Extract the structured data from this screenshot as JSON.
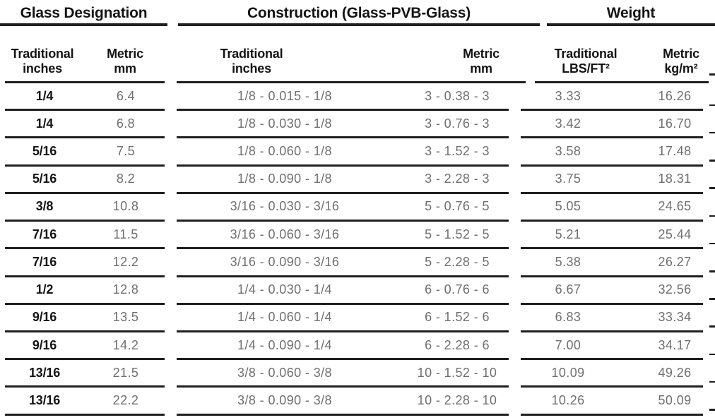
{
  "colors": {
    "ink": "#141414",
    "muted": "#6f6f6f",
    "rule": "#1f1f1f"
  },
  "header": {
    "groups": [
      {
        "title": "Glass Designation"
      },
      {
        "title": "Construction (Glass-PVB-Glass)"
      },
      {
        "title": "Weight"
      }
    ],
    "subcolumns": [
      {
        "line1": "Traditional",
        "line2": "inches"
      },
      {
        "line1": "Metric",
        "line2": "mm"
      },
      {
        "line1": "Traditional",
        "line2": "inches"
      },
      {
        "line1": "Metric",
        "line2": "mm"
      },
      {
        "line1": "Traditional",
        "line2": "LBS/FT²"
      },
      {
        "line1": "Metric",
        "line2": "kg/m²"
      }
    ]
  },
  "rows": [
    {
      "glass_in": "1/4",
      "glass_mm": "6.4",
      "con_in": "1/8 - 0.015 - 1/8",
      "con_mm": "3 - 0.38 - 3",
      "lbs": "3.33",
      "kg": "16.26"
    },
    {
      "glass_in": "1/4",
      "glass_mm": "6.8",
      "con_in": "1/8 - 0.030 - 1/8",
      "con_mm": "3 - 0.76 - 3",
      "lbs": "3.42",
      "kg": "16.70"
    },
    {
      "glass_in": "5/16",
      "glass_mm": "7.5",
      "con_in": "1/8 - 0.060 - 1/8",
      "con_mm": "3 - 1.52 - 3",
      "lbs": "3.58",
      "kg": "17.48"
    },
    {
      "glass_in": "5/16",
      "glass_mm": "8.2",
      "con_in": "1/8 - 0.090 - 1/8",
      "con_mm": "3 - 2.28 - 3",
      "lbs": "3.75",
      "kg": "18.31"
    },
    {
      "glass_in": "3/8",
      "glass_mm": "10.8",
      "con_in": "3/16 - 0.030 - 3/16",
      "con_mm": "5 - 0.76 - 5",
      "lbs": "5.05",
      "kg": "24.65"
    },
    {
      "glass_in": "7/16",
      "glass_mm": "11.5",
      "con_in": "3/16 - 0.060 - 3/16",
      "con_mm": "5 - 1.52 - 5",
      "lbs": "5.21",
      "kg": "25.44"
    },
    {
      "glass_in": "7/16",
      "glass_mm": "12.2",
      "con_in": "3/16 - 0.090 - 3/16",
      "con_mm": "5 - 2.28 - 5",
      "lbs": "5.38",
      "kg": "26.27"
    },
    {
      "glass_in": "1/2",
      "glass_mm": "12.8",
      "con_in": "1/4 - 0.030 - 1/4",
      "con_mm": "6 - 0.76 - 6",
      "lbs": "6.67",
      "kg": "32.56"
    },
    {
      "glass_in": "9/16",
      "glass_mm": "13.5",
      "con_in": "1/4 - 0.060 - 1/4",
      "con_mm": "6 - 1.52 - 6",
      "lbs": "6.83",
      "kg": "33.34"
    },
    {
      "glass_in": "9/16",
      "glass_mm": "14.2",
      "con_in": "1/4 - 0.090 - 1/4",
      "con_mm": "6 - 2.28 - 6",
      "lbs": "7.00",
      "kg": "34.17"
    },
    {
      "glass_in": "13/16",
      "glass_mm": "21.5",
      "con_in": "3/8 - 0.060 - 3/8",
      "con_mm": "10 - 1.52 - 10",
      "lbs": "10.09",
      "kg": "49.26"
    },
    {
      "glass_in": "13/16",
      "glass_mm": "22.2",
      "con_in": "3/8 - 0.090 - 3/8",
      "con_mm": "10 - 2.28 - 10",
      "lbs": "10.26",
      "kg": "50.09"
    }
  ]
}
